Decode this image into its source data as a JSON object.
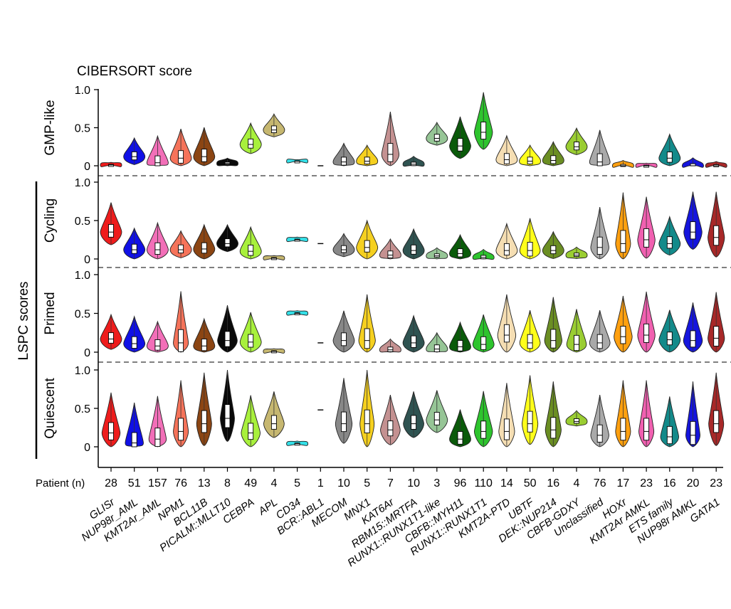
{
  "chart_data": {
    "type": "violin",
    "title": "CIBERSORT score",
    "ylabel_group": "LSPC scores",
    "patient_label": "Patient (n)",
    "yticks": [
      {
        "label": "1.0",
        "value": 1.0
      },
      {
        "label": "0.5",
        "value": 0.5
      },
      {
        "label": "0",
        "value": 0
      }
    ],
    "ylim": [
      0,
      1.0
    ],
    "categories": [
      "GLISr",
      "NUP98r_AML",
      "KMT2Ar_AML",
      "NPM1",
      "BCL11B",
      "PICALM::MLLT10",
      "CEBPA",
      "APL",
      "CD34",
      "BCR::ABL1",
      "MECOM",
      "MNX1",
      "KAT6Ar",
      "RBM15::MRTFA",
      "RUNX1::RUNX1T1-like",
      "CBFB::MYH11",
      "RUNX1::RUNX1T1",
      "KMT2A-PTD",
      "UBTF",
      "DEK::NUP214",
      "CBFB-GDXY",
      "Unclassified",
      "HOXr",
      "KMT2Ar AMKL",
      "ETS family",
      "NUP98r AMKL",
      "GATA1"
    ],
    "patient_n": [
      "28",
      "51",
      "157",
      "76",
      "13",
      "8",
      "49",
      "4",
      "5",
      "1",
      "10",
      "5",
      "7",
      "10",
      "3",
      "96",
      "110",
      "14",
      "50",
      "16",
      "4",
      "76",
      "17",
      "23",
      "16",
      "20",
      "23"
    ],
    "colors": [
      "#ee1c1c",
      "#1010e6",
      "#f26fb8",
      "#f5735a",
      "#8b4513",
      "#0a0a0a",
      "#a8f03c",
      "#c6b770",
      "#34e0e8",
      "#000000",
      "#888888",
      "#f5d020",
      "#c49191",
      "#2f5351",
      "#96c596",
      "#0a5a0a",
      "#2ec42e",
      "#f5deb3",
      "#ffff1a",
      "#6b8e23",
      "#9acd32",
      "#a9a9a9",
      "#ffa010",
      "#f060b0",
      "#138a8a",
      "#1515dd",
      "#a82828"
    ],
    "series": [
      {
        "name": "GMP-like",
        "medians": [
          0.01,
          0.12,
          0.04,
          0.1,
          0.12,
          0.03,
          0.28,
          0.47,
          0.06,
          0.0,
          0.05,
          0.06,
          0.15,
          0.02,
          0.36,
          0.26,
          0.44,
          0.08,
          0.06,
          0.07,
          0.25,
          0.05,
          0.0,
          0.0,
          0.1,
          0.0,
          0.0
        ]
      },
      {
        "name": "Cycling",
        "medians": [
          0.35,
          0.12,
          0.12,
          0.12,
          0.13,
          0.2,
          0.1,
          0.01,
          0.25,
          0.2,
          0.12,
          0.15,
          0.05,
          0.11,
          0.04,
          0.07,
          0.02,
          0.11,
          0.11,
          0.11,
          0.05,
          0.15,
          0.2,
          0.25,
          0.2,
          0.35,
          0.28
        ]
      },
      {
        "name": "Primed",
        "medians": [
          0.17,
          0.11,
          0.08,
          0.12,
          0.08,
          0.15,
          0.13,
          0.01,
          0.5,
          0.12,
          0.15,
          0.15,
          0.03,
          0.12,
          0.04,
          0.07,
          0.1,
          0.22,
          0.12,
          0.15,
          0.1,
          0.12,
          0.2,
          0.22,
          0.16,
          0.15,
          0.18
        ]
      },
      {
        "name": "Quiescent",
        "medians": [
          0.18,
          0.05,
          0.1,
          0.2,
          0.3,
          0.37,
          0.18,
          0.3,
          0.04,
          0.48,
          0.3,
          0.3,
          0.22,
          0.3,
          0.35,
          0.1,
          0.2,
          0.2,
          0.3,
          0.22,
          0.33,
          0.15,
          0.2,
          0.2,
          0.13,
          0.15,
          0.3
        ]
      }
    ],
    "spreads": [
      [
        0.05,
        0.35,
        0.5,
        0.55,
        0.55,
        0.1,
        0.4,
        0.3,
        0.03,
        0.0,
        0.35,
        0.3,
        0.8,
        0.15,
        0.3,
        0.55,
        0.75,
        0.45,
        0.3,
        0.35,
        0.35,
        0.6,
        0.1,
        0.05,
        0.45,
        0.15,
        0.08
      ],
      [
        0.55,
        0.4,
        0.5,
        0.35,
        0.45,
        0.35,
        0.45,
        0.05,
        0.05,
        0.0,
        0.3,
        0.5,
        0.3,
        0.4,
        0.15,
        0.35,
        0.15,
        0.5,
        0.6,
        0.35,
        0.15,
        0.75,
        0.95,
        0.8,
        0.5,
        0.75,
        0.85
      ],
      [
        0.45,
        0.5,
        0.45,
        0.95,
        0.5,
        0.65,
        0.55,
        0.05,
        0.05,
        0.0,
        0.55,
        0.85,
        0.2,
        0.5,
        0.3,
        0.45,
        0.55,
        0.75,
        0.6,
        0.8,
        0.65,
        0.6,
        0.75,
        0.8,
        0.55,
        0.7,
        0.85
      ],
      [
        0.75,
        0.75,
        0.8,
        0.95,
        0.95,
        1.0,
        0.7,
        0.6,
        0.05,
        0.0,
        0.85,
        1.0,
        0.65,
        0.6,
        0.55,
        0.55,
        0.75,
        0.9,
        0.9,
        0.9,
        0.2,
        0.75,
        0.95,
        0.95,
        0.75,
        1.0,
        0.95
      ]
    ],
    "grid": false
  }
}
